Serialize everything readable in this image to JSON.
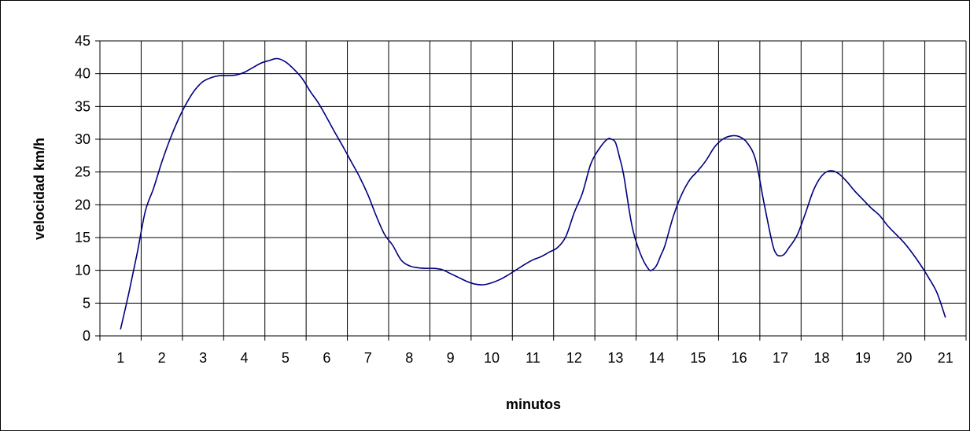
{
  "chart_data": {
    "type": "line",
    "title": "",
    "xlabel": "minutos",
    "ylabel": "velocidad km/h",
    "categories": [
      "1",
      "2",
      "3",
      "4",
      "5",
      "6",
      "7",
      "8",
      "9",
      "10",
      "11",
      "12",
      "13",
      "14",
      "15",
      "16",
      "17",
      "18",
      "19",
      "20",
      "21"
    ],
    "y_ticks": [
      0,
      5,
      10,
      15,
      20,
      25,
      30,
      35,
      40,
      45
    ],
    "xlim": [
      0.5,
      21.5
    ],
    "ylim": [
      0,
      45
    ],
    "grid": true,
    "legend": "none",
    "line_color": "#000080",
    "x": [
      1,
      1.2,
      1.4,
      1.6,
      1.8,
      2,
      2.2,
      2.4,
      2.6,
      2.8,
      3,
      3.2,
      3.4,
      3.6,
      3.8,
      4,
      4.2,
      4.4,
      4.6,
      4.8,
      5,
      5.2,
      5.4,
      5.6,
      5.8,
      6,
      6.2,
      6.4,
      6.6,
      6.8,
      7,
      7.2,
      7.4,
      7.6,
      7.8,
      8,
      8.2,
      8.4,
      8.6,
      8.8,
      9,
      9.2,
      9.4,
      9.6,
      9.8,
      10,
      10.2,
      10.4,
      10.6,
      10.8,
      11,
      11.2,
      11.4,
      11.6,
      11.8,
      12,
      12.2,
      12.4,
      12.6,
      12.8,
      12.9,
      13,
      13.1,
      13.2,
      13.4,
      13.6,
      13.8,
      13.9,
      14,
      14.1,
      14.2,
      14.4,
      14.6,
      14.8,
      15,
      15.2,
      15.4,
      15.6,
      15.8,
      16,
      16.2,
      16.4,
      16.6,
      16.8,
      16.9,
      17,
      17.1,
      17.2,
      17.4,
      17.6,
      17.8,
      18,
      18.2,
      18.4,
      18.6,
      18.8,
      19,
      19.2,
      19.4,
      19.6,
      19.8,
      20,
      20.2,
      20.4,
      20.6,
      20.8,
      21
    ],
    "values": [
      1,
      6.5,
      12.5,
      19,
      22.5,
      26.5,
      30,
      33,
      35.5,
      37.5,
      38.8,
      39.4,
      39.7,
      39.7,
      39.8,
      40.2,
      40.9,
      41.6,
      42,
      42.3,
      41.8,
      40.7,
      39.3,
      37.3,
      35.5,
      33.3,
      31,
      28.8,
      26.5,
      24.2,
      21.5,
      18.3,
      15.5,
      13.8,
      11.6,
      10.7,
      10.4,
      10.3,
      10.3,
      10.1,
      9.5,
      8.9,
      8.3,
      7.9,
      7.8,
      8.1,
      8.6,
      9.3,
      10.1,
      10.9,
      11.6,
      12.1,
      12.8,
      13.5,
      15.2,
      18.8,
      21.8,
      26.2,
      28.5,
      30,
      30,
      29.5,
      27.2,
      24.5,
      16.8,
      12.6,
      10.2,
      10.1,
      10.8,
      12.3,
      13.8,
      18.2,
      21.5,
      23.8,
      25.2,
      26.8,
      28.8,
      30,
      30.5,
      30.4,
      29.4,
      26.8,
      20.3,
      14.2,
      12.5,
      12.2,
      12.5,
      13.4,
      15.3,
      18.6,
      22.2,
      24.4,
      25.2,
      24.8,
      23.6,
      22.1,
      20.8,
      19.5,
      18.4,
      16.8,
      15.5,
      14.2,
      12.6,
      10.8,
      8.8,
      6.5,
      2.8
    ]
  }
}
